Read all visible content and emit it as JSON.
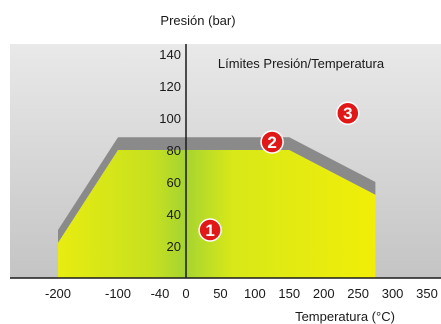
{
  "chart_data": {
    "type": "area",
    "title": "Límites Presión/Temperatura",
    "xlabel": "Temperatura (°C)",
    "ylabel": "Presión (bar)",
    "x_ticks": [
      "-200",
      "-100",
      "-40",
      "0",
      "50",
      "100",
      "150",
      "200",
      "250",
      "300",
      "350"
    ],
    "y_ticks": [
      "20",
      "40",
      "60",
      "80",
      "100",
      "120",
      "140"
    ],
    "grid": false,
    "series": [
      {
        "name": "1",
        "color": "#e8ee10",
        "points": [
          [
            -200,
            22
          ],
          [
            -100,
            80
          ],
          [
            150,
            80
          ],
          [
            275,
            52
          ],
          [
            275,
            0
          ],
          [
            -200,
            0
          ]
        ]
      },
      {
        "name": "2",
        "color": "#8a8a8a",
        "points": [
          [
            -200,
            30
          ],
          [
            -100,
            88
          ],
          [
            150,
            88
          ],
          [
            275,
            60
          ],
          [
            275,
            52
          ],
          [
            150,
            80
          ],
          [
            -100,
            80
          ],
          [
            -200,
            22
          ]
        ]
      }
    ],
    "zones": [
      {
        "label": "1",
        "x": 35,
        "y": 30,
        "color": "#e01818"
      },
      {
        "label": "2",
        "x": 125,
        "y": 85,
        "color": "#e01818"
      },
      {
        "label": "3",
        "x": 235,
        "y": 103,
        "color": "#e01818"
      }
    ]
  }
}
